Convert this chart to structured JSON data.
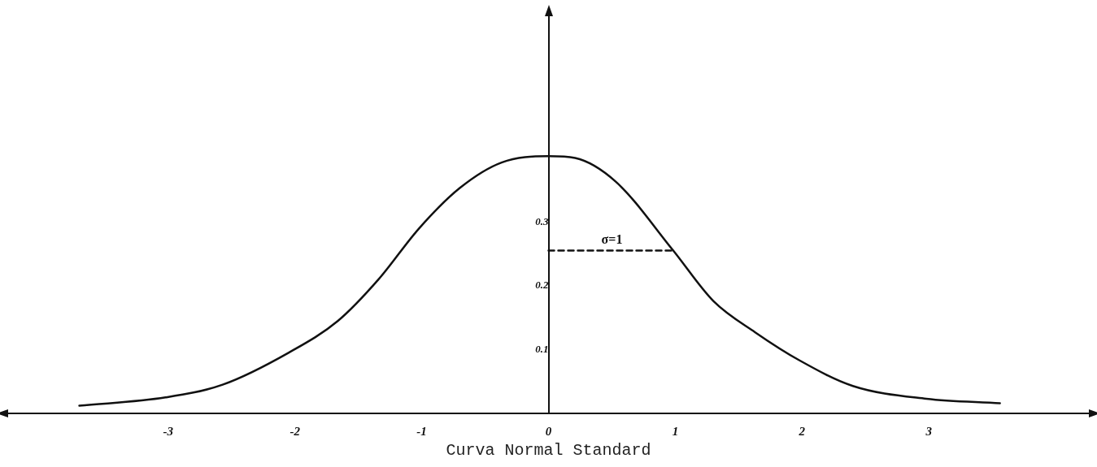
{
  "chart_data": {
    "type": "line",
    "title": "Curva Normal Standard",
    "marker": "none",
    "xlim": [
      -4.3,
      4.3
    ],
    "ylim": [
      0,
      0.63
    ],
    "xticks": [
      -3,
      -2,
      -1,
      0,
      1,
      2,
      3
    ],
    "yticks": [
      0.1,
      0.2,
      0.3
    ],
    "series": [
      {
        "color": "#111111",
        "line_style": "solid",
        "x": [
          -3.7,
          -3.02,
          -2.57,
          -2.05,
          -1.66,
          -1.34,
          -1.02,
          -0.7,
          -0.37,
          0,
          0.21,
          0.53,
          0.98,
          1.3,
          1.63,
          1.98,
          2.4,
          2.98,
          3.56
        ],
        "values": [
          0.012,
          0.025,
          0.045,
          0.095,
          0.145,
          0.21,
          0.29,
          0.353,
          0.393,
          0.403,
          0.4,
          0.363,
          0.256,
          0.176,
          0.127,
          0.083,
          0.043,
          0.023,
          0.016
        ]
      },
      {
        "color": "#111111",
        "line_style": "dashed",
        "x": [
          0,
          1
        ],
        "values": [
          0.255,
          0.255
        ]
      }
    ],
    "annotations": [
      {
        "text": "σ=1",
        "x": 0.5,
        "y": 0.255
      }
    ]
  }
}
